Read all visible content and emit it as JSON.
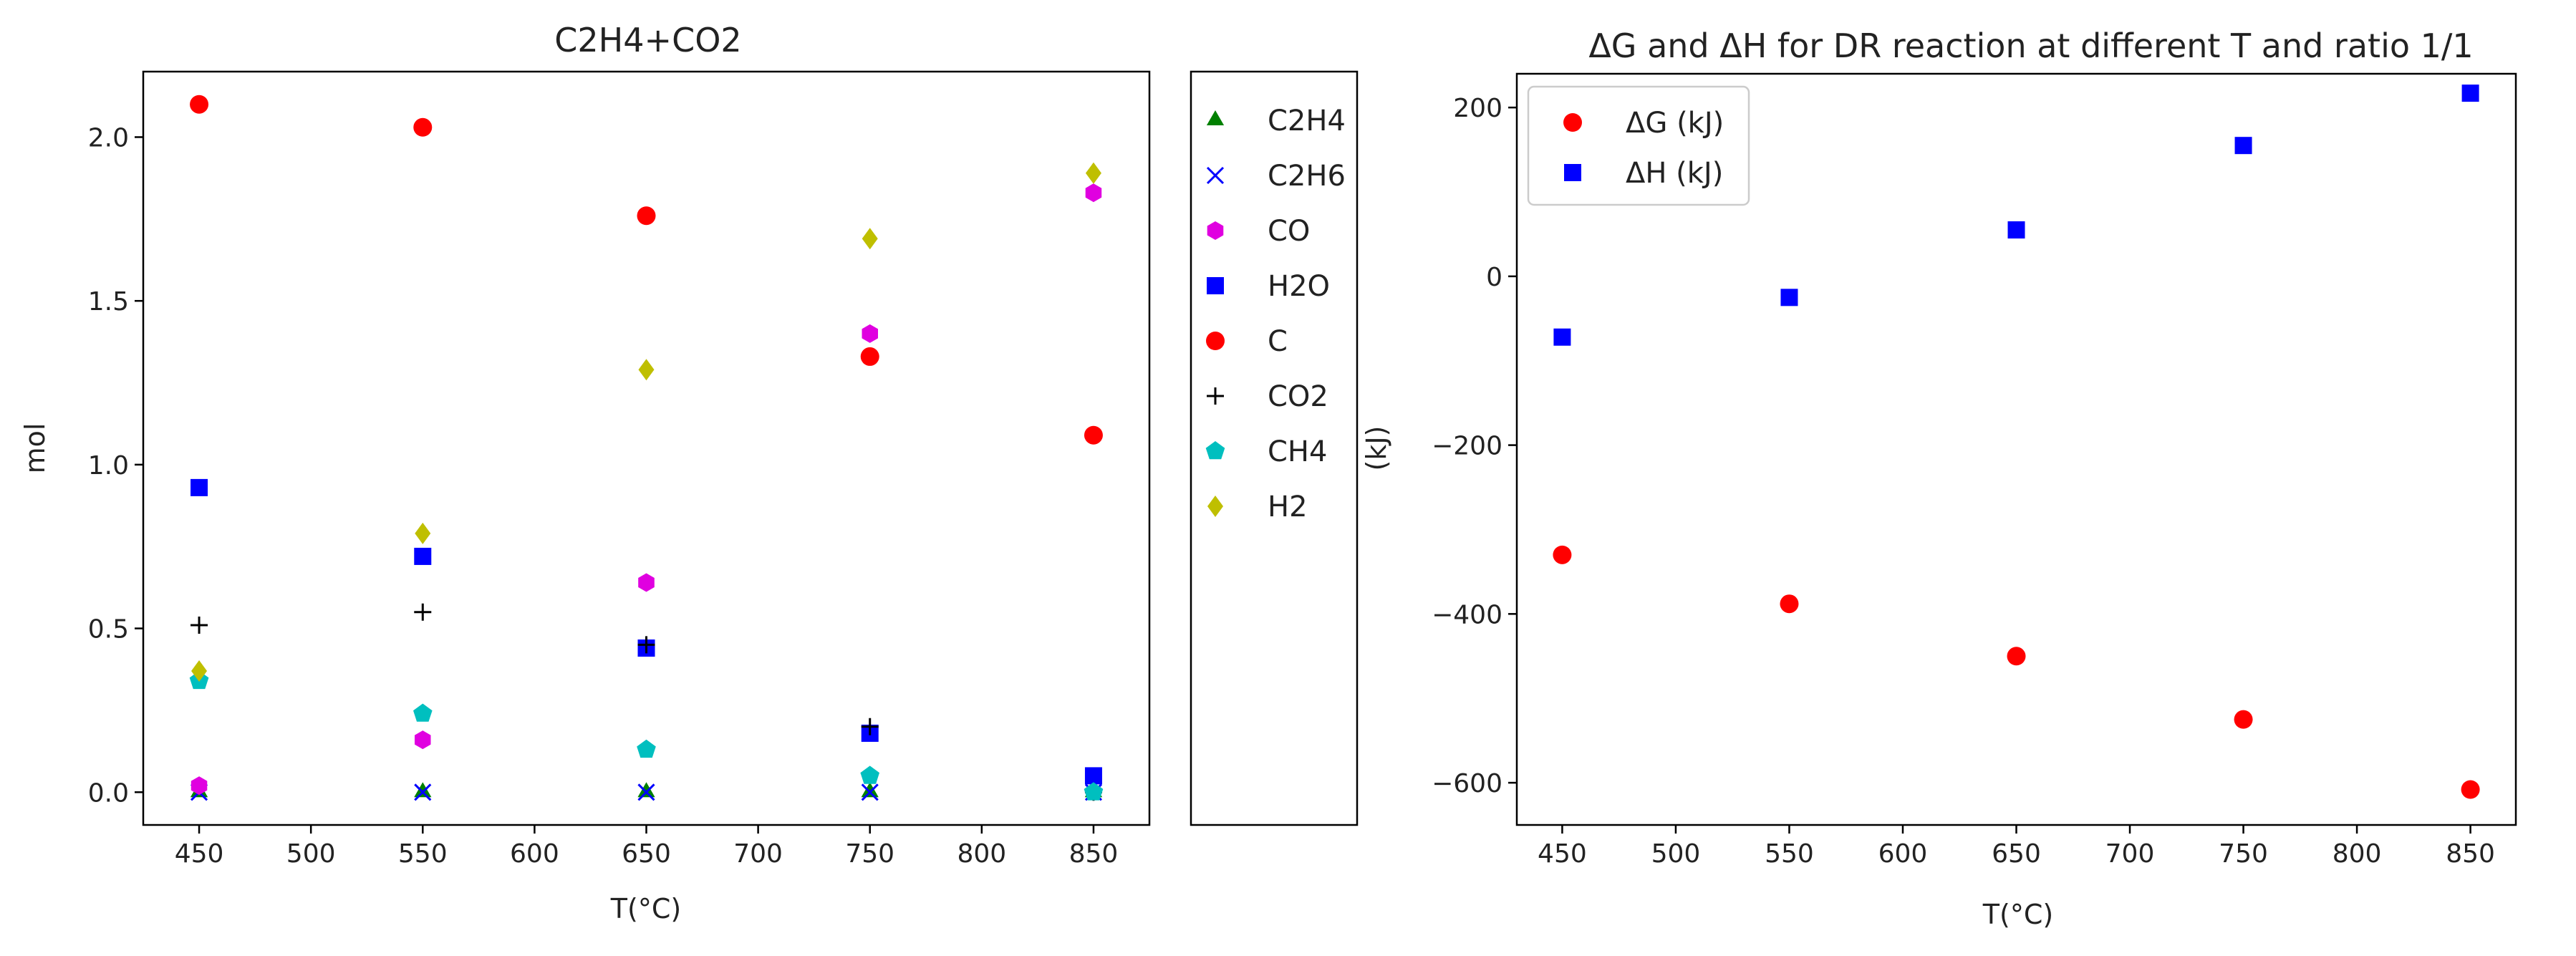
{
  "chart_data": [
    {
      "type": "scatter",
      "title": "C2H4+CO2",
      "xlabel": "T(°C)",
      "ylabel": "mol",
      "xlim": [
        425,
        875
      ],
      "ylim": [
        -0.1,
        2.2
      ],
      "x_ticks": [
        "450",
        "500",
        "550",
        "600",
        "650",
        "700",
        "750",
        "800",
        "850"
      ],
      "y_ticks": [
        "0.0",
        "0.5",
        "1.0",
        "1.5",
        "2.0"
      ],
      "x": [
        450,
        550,
        650,
        750,
        850
      ],
      "legend_position": "outside-right",
      "series": [
        {
          "name": "C2H4",
          "marker": "triangle",
          "color": "#008000",
          "values": [
            0.0,
            0.0,
            0.0,
            0.0,
            0.0
          ]
        },
        {
          "name": "C2H6",
          "marker": "x",
          "color": "#0000ff",
          "values": [
            0.0,
            0.0,
            0.0,
            0.0,
            0.0
          ]
        },
        {
          "name": "CO",
          "marker": "hexagon",
          "color": "#e000e0",
          "values": [
            0.02,
            0.16,
            0.64,
            1.4,
            1.83
          ]
        },
        {
          "name": "H2O",
          "marker": "square",
          "color": "#0000ff",
          "values": [
            0.93,
            0.72,
            0.44,
            0.18,
            0.05
          ]
        },
        {
          "name": "C",
          "marker": "circle",
          "color": "#ff0000",
          "values": [
            2.1,
            2.03,
            1.76,
            1.33,
            1.09
          ]
        },
        {
          "name": "CO2",
          "marker": "plus",
          "color": "#000000",
          "values": [
            0.51,
            0.55,
            0.45,
            0.2,
            0.0
          ]
        },
        {
          "name": "CH4",
          "marker": "pentagon",
          "color": "#00bfbf",
          "values": [
            0.34,
            0.24,
            0.13,
            0.05,
            0.0
          ]
        },
        {
          "name": "H2",
          "marker": "diamond",
          "color": "#bfbf00",
          "values": [
            0.37,
            0.79,
            1.29,
            1.69,
            1.89
          ]
        }
      ]
    },
    {
      "type": "scatter",
      "title": "ΔG and ΔH for DR reaction at different T and ratio 1/1",
      "xlabel": "T(°C)",
      "ylabel": "(kJ)",
      "xlim": [
        430,
        870
      ],
      "ylim": [
        -650,
        240
      ],
      "x_ticks": [
        "450",
        "500",
        "550",
        "600",
        "650",
        "700",
        "750",
        "800",
        "850"
      ],
      "y_ticks": [
        "200",
        "0",
        "−200",
        "−400",
        "−600"
      ],
      "x": [
        450,
        550,
        650,
        750,
        850
      ],
      "legend_position": "upper-left",
      "series": [
        {
          "name": "ΔG (kJ)",
          "marker": "circle",
          "color": "#ff0000",
          "values": [
            -330,
            -388,
            -450,
            -525,
            -608
          ]
        },
        {
          "name": "ΔH (kJ)",
          "marker": "square",
          "color": "#0000ff",
          "values": [
            -72,
            -25,
            55,
            155,
            217
          ]
        }
      ]
    }
  ]
}
